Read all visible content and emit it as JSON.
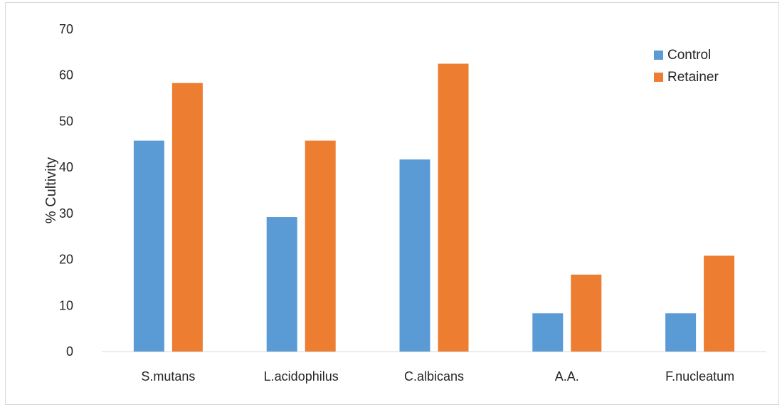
{
  "chart_data": {
    "type": "bar",
    "title": "",
    "xlabel": "",
    "ylabel": "% Cultivity",
    "ylim": [
      0,
      70
    ],
    "yticks": [
      0,
      10,
      20,
      30,
      40,
      50,
      60,
      70
    ],
    "grid": false,
    "legend_position": "top-right",
    "categories": [
      "S.mutans",
      "L.acidophilus",
      "C.albicans",
      "A.A.",
      "F.nucleatum"
    ],
    "series": [
      {
        "name": "Control",
        "color": "#5B9BD5",
        "values": [
          45.8,
          29.2,
          41.7,
          8.3,
          8.3
        ]
      },
      {
        "name": "Retainer",
        "color": "#ED7D31",
        "values": [
          58.3,
          45.8,
          62.5,
          16.7,
          20.8
        ]
      }
    ]
  }
}
